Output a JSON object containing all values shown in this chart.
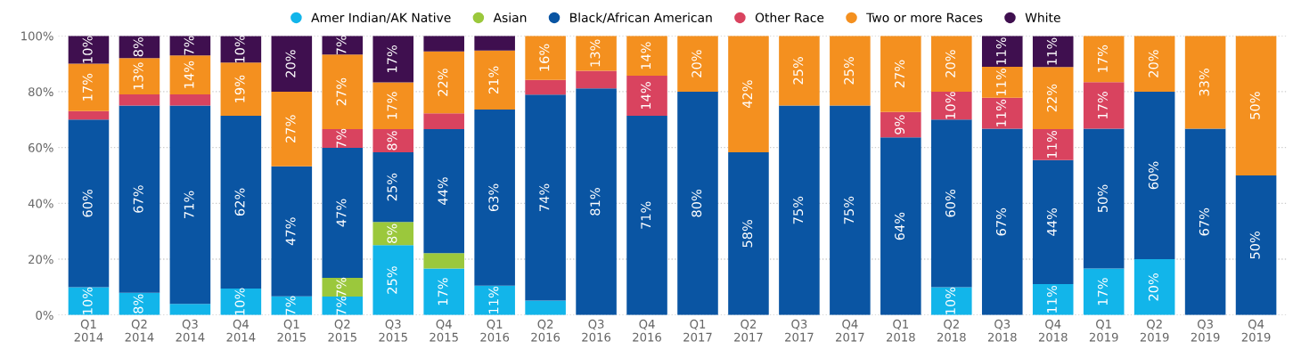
{
  "chart_data": {
    "type": "bar",
    "stacked": true,
    "categories": [
      "Q1\n2014",
      "Q2\n2014",
      "Q3\n2014",
      "Q4\n2014",
      "Q1\n2015",
      "Q2\n2015",
      "Q3\n2015",
      "Q4\n2015",
      "Q1\n2016",
      "Q2\n2016",
      "Q3\n2016",
      "Q4\n2016",
      "Q1\n2017",
      "Q2\n2017",
      "Q3\n2017",
      "Q4\n2017",
      "Q1\n2018",
      "Q2\n2018",
      "Q3\n2018",
      "Q4\n2018",
      "Q1\n2019",
      "Q2\n2019",
      "Q3\n2019",
      "Q4\n2019"
    ],
    "series": [
      {
        "name": "Amer Indian/AK Native",
        "color": "#12b5ea",
        "values": [
          10,
          8,
          4,
          9.5,
          6.7,
          6.6,
          25,
          16.7,
          10.5,
          5.2,
          null,
          null,
          null,
          null,
          null,
          null,
          null,
          10,
          null,
          11.1,
          16.7,
          20,
          null,
          null
        ],
        "value_labels": [
          "10%",
          "8%",
          null,
          "10%",
          "7%",
          "7%",
          "25%",
          "17%",
          "11%",
          null,
          null,
          null,
          null,
          null,
          null,
          null,
          null,
          "10%",
          null,
          "11%",
          "17%",
          "20%",
          null,
          null
        ]
      },
      {
        "name": "Asian",
        "color": "#9bc83c",
        "values": [
          null,
          null,
          null,
          null,
          null,
          6.7,
          8.3,
          5.5,
          null,
          null,
          null,
          null,
          null,
          null,
          null,
          null,
          null,
          null,
          null,
          null,
          null,
          null,
          null,
          null
        ],
        "value_labels": [
          null,
          null,
          null,
          null,
          null,
          "7%",
          "8%",
          null,
          null,
          null,
          null,
          null,
          null,
          null,
          null,
          null,
          null,
          null,
          null,
          null,
          null,
          null,
          null,
          null
        ]
      },
      {
        "name": "Black/African American",
        "color": "#0a55a3",
        "values": [
          60,
          67,
          71,
          61.9,
          46.6,
          46.6,
          25,
          44.4,
          63.1,
          73.7,
          81.2,
          71.4,
          80,
          58.3,
          75,
          75,
          63.6,
          60,
          66.7,
          44.4,
          50,
          60,
          66.7,
          50
        ],
        "value_labels": [
          "60%",
          "67%",
          "71%",
          "62%",
          "47%",
          "47%",
          "25%",
          "44%",
          "63%",
          "74%",
          "81%",
          "71%",
          "80%",
          "58%",
          "75%",
          "75%",
          "64%",
          "60%",
          "67%",
          "44%",
          "50%",
          "60%",
          "67%",
          "50%"
        ]
      },
      {
        "name": "Other Race",
        "color": "#d9435f",
        "values": [
          3,
          4,
          4,
          null,
          null,
          6.7,
          8.3,
          5.6,
          null,
          5.3,
          6.3,
          14.3,
          null,
          null,
          null,
          null,
          9.1,
          10,
          11.1,
          11.1,
          16.7,
          null,
          null,
          null
        ],
        "value_labels": [
          null,
          null,
          null,
          null,
          null,
          "7%",
          "8%",
          null,
          null,
          null,
          null,
          "14%",
          null,
          null,
          null,
          null,
          "9%",
          "10%",
          "11%",
          "11%",
          "17%",
          null,
          null,
          null
        ]
      },
      {
        "name": "Two or more Races",
        "color": "#f4901f",
        "values": [
          17,
          13,
          14,
          19,
          26.7,
          26.7,
          16.7,
          22.2,
          21.1,
          15.8,
          12.5,
          14.3,
          20,
          41.7,
          25,
          25,
          27.3,
          20,
          11.1,
          22.2,
          16.6,
          20,
          33.3,
          50
        ],
        "value_labels": [
          "17%",
          "13%",
          "14%",
          "19%",
          "27%",
          "27%",
          "17%",
          "22%",
          "21%",
          "16%",
          "13%",
          "14%",
          "20%",
          "42%",
          "25%",
          "25%",
          "27%",
          "20%",
          "11%",
          "22%",
          "17%",
          "20%",
          "33%",
          "50%"
        ]
      },
      {
        "name": "White",
        "color": "#3f0f4f",
        "values": [
          10,
          8,
          7,
          9.5,
          20,
          6.7,
          16.7,
          5.6,
          5.3,
          null,
          null,
          null,
          null,
          null,
          null,
          null,
          null,
          null,
          11.1,
          11.1,
          null,
          null,
          null,
          null
        ],
        "value_labels": [
          "10%",
          "8%",
          "7%",
          "10%",
          "20%",
          "7%",
          "17%",
          null,
          null,
          null,
          null,
          null,
          null,
          null,
          null,
          null,
          null,
          null,
          "11%",
          "11%",
          null,
          null,
          null,
          null
        ]
      }
    ],
    "ylim": [
      0,
      100
    ],
    "yticks": [
      {
        "value": 0,
        "label": "0%"
      },
      {
        "value": 20,
        "label": "20%"
      },
      {
        "value": 40,
        "label": "40%"
      },
      {
        "value": 60,
        "label": "60%"
      },
      {
        "value": 80,
        "label": "80%"
      },
      {
        "value": 100,
        "label": "100%"
      }
    ],
    "grid": "y",
    "legend": "top"
  }
}
